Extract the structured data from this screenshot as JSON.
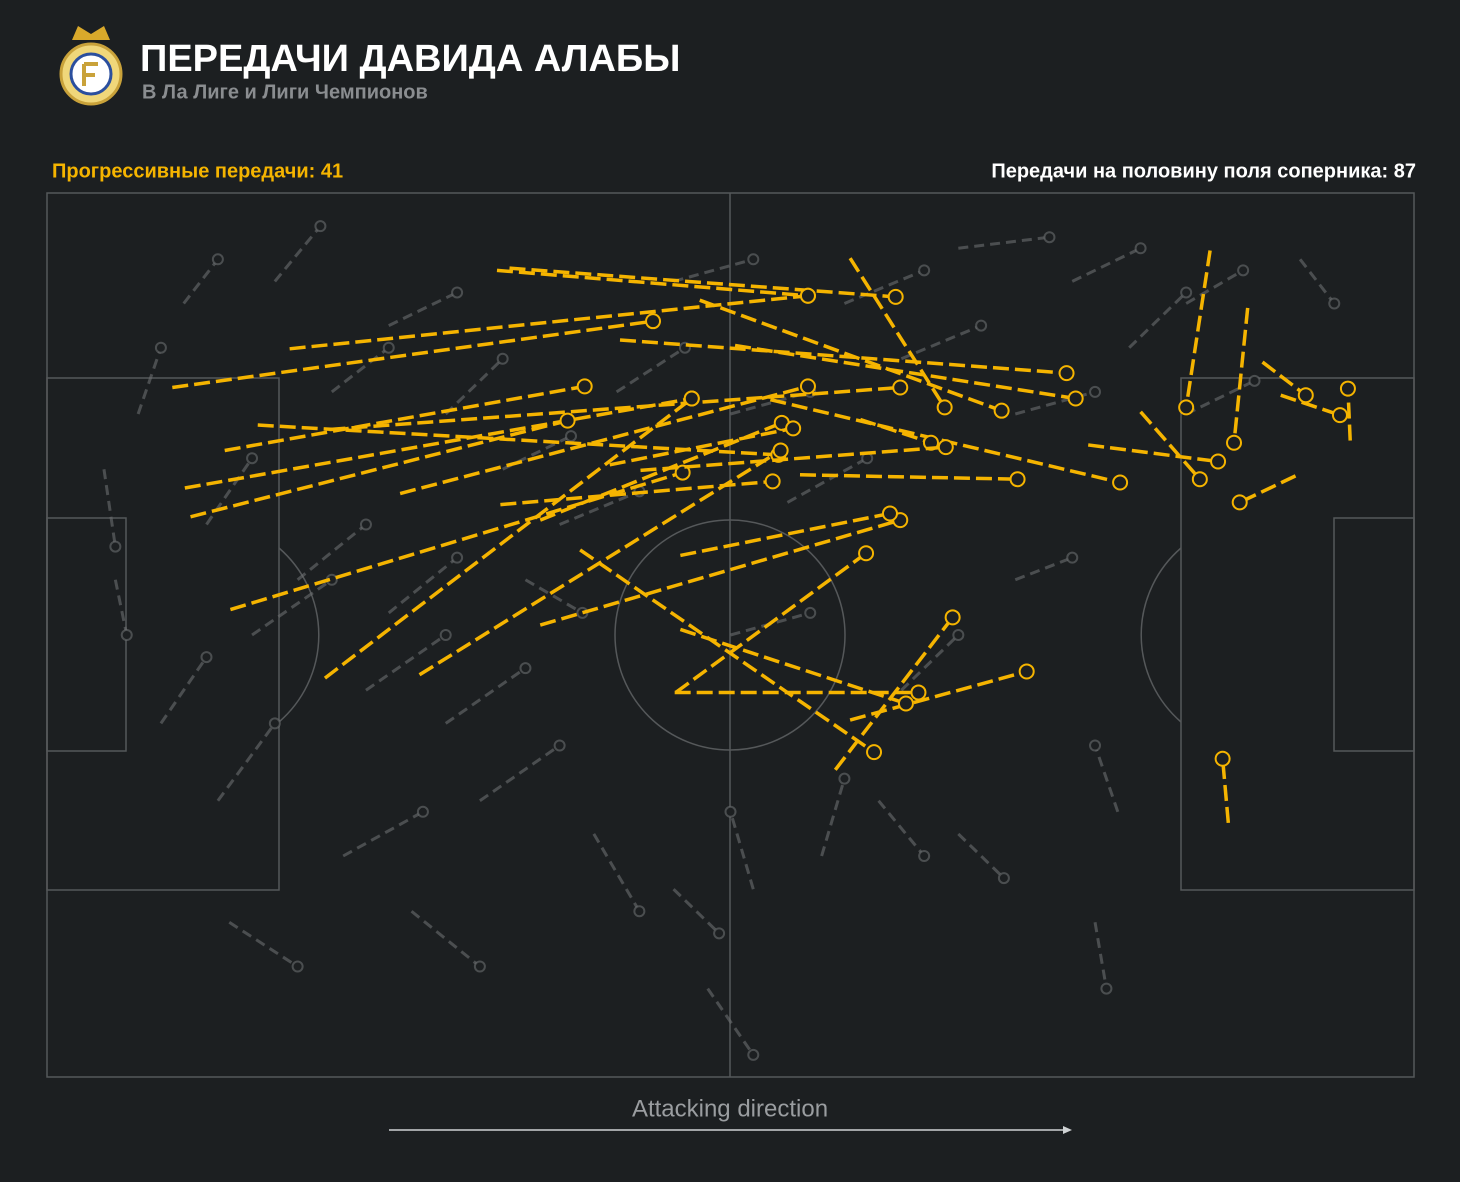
{
  "chart_data": {
    "type": "pass-map",
    "title": "ПЕРЕДАЧИ ДАВИДА АЛАБЫ",
    "subtitle": "В Ла Лиге и Лиги Чемпионов",
    "annotation": "Передачи на половину поля соперника: 87",
    "xlabel": "Attacking direction",
    "xlim": [
      0,
      120
    ],
    "ylim": [
      0,
      80
    ],
    "series": [
      {
        "name": "Прогрессивные передачи: 41",
        "color": "#f5b400",
        "x": [
          39.5,
          40.6,
          11.0,
          21.3,
          70.5,
          50.3,
          60.4,
          57.3,
          15.6,
          12.1,
          12.6,
          18.5,
          31.0,
          24.8,
          43.3,
          49.4,
          39.8,
          16.1,
          24.4,
          32.7,
          43.3,
          55.6,
          46.8,
          55.2,
          63.5,
          71.4,
          52.1,
          66.1,
          69.2,
          70.5,
          55.1,
          55.6,
          102.1,
          105.4,
          91.4,
          96.0,
          109.6,
          106.7,
          108.3,
          114.4,
          103.7
        ],
        "y": [
          7.0,
          6.8,
          17.6,
          14.1,
          5.9,
          13.3,
          13.8,
          9.7,
          23.3,
          26.7,
          29.3,
          21.0,
          27.2,
          21.4,
          29.6,
          24.6,
          28.2,
          37.7,
          43.9,
          43.6,
          39.1,
          32.8,
          32.3,
          45.2,
          18.7,
          20.5,
          25.1,
          25.5,
          52.2,
          47.7,
          45.2,
          39.5,
          5.2,
          10.4,
          22.8,
          19.8,
          25.6,
          15.3,
          18.3,
          22.4,
          57.0
        ],
        "x_end": [
          66.8,
          74.5,
          53.2,
          66.8,
          78.8,
          89.5,
          90.3,
          83.8,
          47.2,
          56.6,
          45.7,
          64.2,
          66.8,
          74.9,
          64.5,
          65.5,
          63.7,
          55.8,
          56.6,
          64.4,
          74.9,
          74.0,
          72.6,
          71.9,
          94.2,
          77.6,
          78.9,
          85.2,
          79.5,
          86.0,
          76.5,
          75.4,
          100.0,
          104.2,
          102.8,
          101.2,
          104.7,
          110.5,
          113.5,
          114.2,
          103.2
        ],
        "y_end": [
          9.3,
          9.4,
          11.6,
          9.3,
          19.4,
          16.3,
          18.6,
          19.7,
          17.5,
          18.6,
          20.6,
          23.7,
          17.5,
          17.6,
          20.8,
          21.3,
          26.1,
          25.3,
          18.6,
          23.3,
          29.6,
          29.0,
          50.6,
          32.6,
          26.2,
          22.6,
          23.0,
          25.9,
          38.4,
          43.3,
          45.2,
          46.2,
          19.4,
          22.6,
          24.3,
          25.9,
          28.0,
          18.3,
          20.1,
          17.7,
          51.2
        ]
      }
    ],
    "other_passes": {
      "color": "#6b6e70",
      "x": [
        12,
        20,
        30,
        8,
        5,
        14,
        25,
        35,
        40,
        22,
        18,
        30,
        28,
        35,
        38,
        26,
        15,
        10,
        16,
        32,
        45,
        50,
        55,
        60,
        65,
        70,
        75,
        80,
        85,
        90,
        95,
        100,
        110,
        60,
        75,
        68,
        62,
        73,
        80,
        94,
        58,
        55,
        92,
        100,
        85,
        48,
        42,
        6
      ],
      "y": [
        10,
        8,
        12,
        20,
        25,
        30,
        18,
        20,
        25,
        35,
        40,
        38,
        45,
        48,
        55,
        60,
        55,
        48,
        66,
        65,
        30,
        18,
        8,
        20,
        28,
        10,
        15,
        5,
        20,
        8,
        14,
        20,
        6,
        40,
        45,
        60,
        63,
        55,
        58,
        56,
        72,
        63,
        66,
        10,
        35,
        58,
        35,
        35
      ],
      "x_end": [
        15,
        24,
        36,
        10,
        6,
        18,
        30,
        40,
        46,
        28,
        25,
        36,
        35,
        42,
        45,
        33,
        20,
        14,
        22,
        38,
        52,
        56,
        62,
        67,
        72,
        77,
        82,
        88,
        92,
        96,
        100,
        106,
        113,
        67,
        80,
        70,
        60,
        77,
        84,
        92,
        62,
        59,
        93,
        105,
        90,
        52,
        47,
        7
      ],
      "y_end": [
        6,
        3,
        9,
        14,
        32,
        24,
        14,
        15,
        22,
        30,
        35,
        33,
        40,
        43,
        50,
        56,
        48,
        42,
        70,
        70,
        27,
        14,
        6,
        18,
        24,
        7,
        12,
        4,
        18,
        5,
        9,
        17,
        10,
        38,
        40,
        53,
        56,
        60,
        62,
        50,
        78,
        67,
        72,
        7,
        33,
        65,
        38,
        40
      ]
    }
  }
}
